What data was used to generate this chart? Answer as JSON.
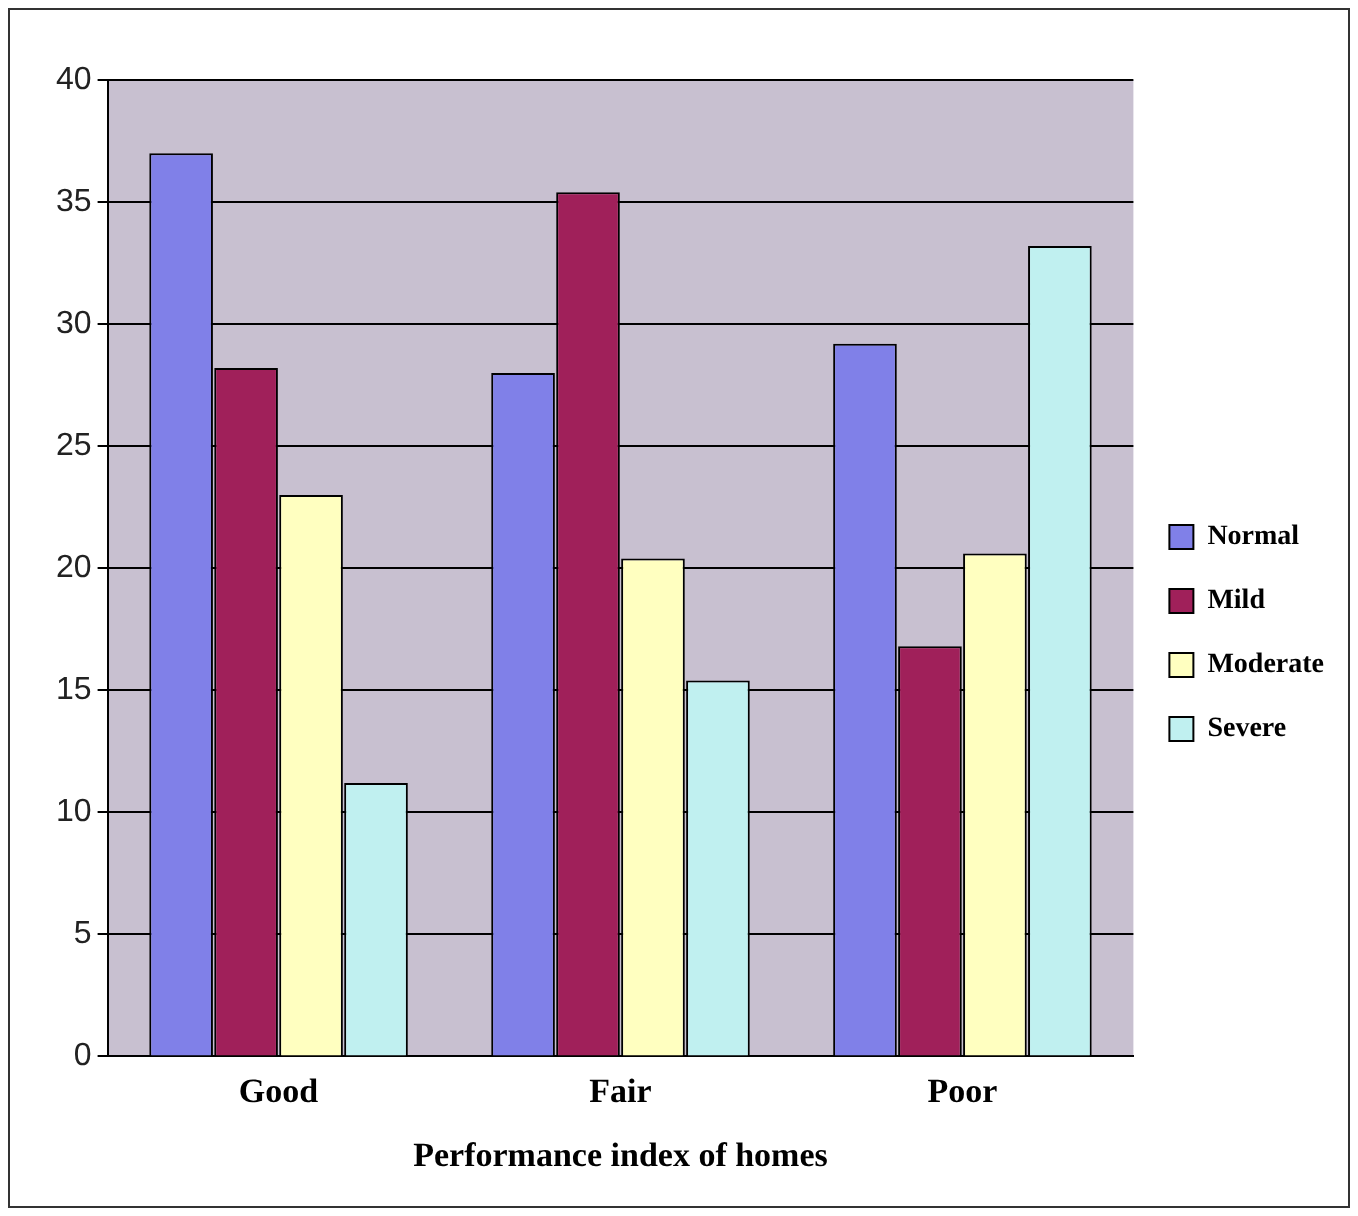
{
  "chart_data": {
    "type": "bar",
    "xlabel": "Performance index of homes",
    "categories": [
      "Good",
      "Fair",
      "Poor"
    ],
    "series": [
      {
        "name": "Normal",
        "color": "#8080e8",
        "values": [
          37,
          28,
          29.2
        ]
      },
      {
        "name": "Mild",
        "color": "#a0205a",
        "values": [
          28.2,
          35.4,
          16.8
        ]
      },
      {
        "name": "Moderate",
        "color": "#ffffc0",
        "values": [
          23,
          20.4,
          20.6
        ]
      },
      {
        "name": "Severe",
        "color": "#c0f0f0",
        "values": [
          11.2,
          15.4,
          33.2
        ]
      }
    ],
    "ylim": [
      0,
      40
    ],
    "yticks": [
      0,
      5,
      10,
      15,
      20,
      25,
      30,
      35,
      40
    ],
    "grid": "y",
    "legend": "right"
  }
}
